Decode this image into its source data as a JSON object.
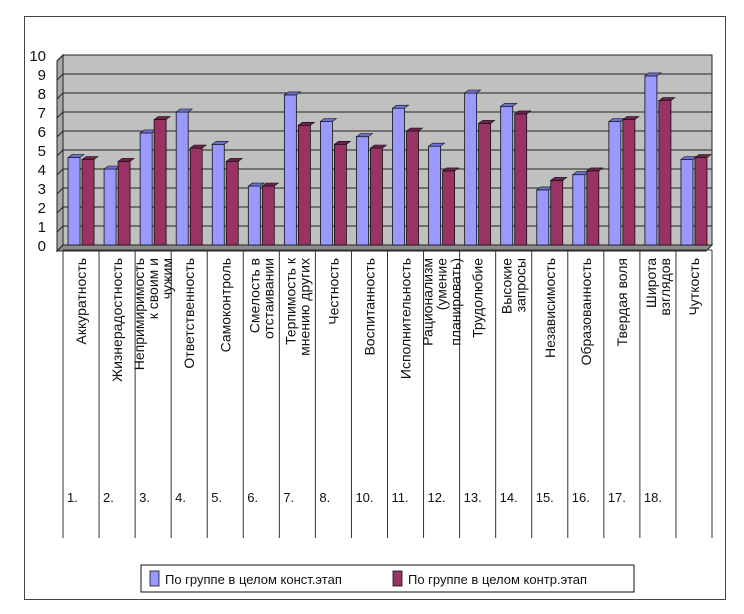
{
  "chart_data": {
    "type": "bar",
    "categories": [
      "Аккуратность",
      "Жизнерадостность",
      "Непримиримость к своим и чужим",
      "Ответственность",
      "Самоконтроль",
      "Смелость в отстаивании",
      "Терпимость к мнению других",
      "Честность",
      "Воспитанность",
      "Исполнительность",
      "Рационализм (умение планировать)",
      "Трудолюбие",
      "Высокие запросы",
      "Независимость",
      "Образованность",
      "Твердая воля",
      "Широта взглядов",
      "Чуткость"
    ],
    "row_numbers": [
      "1.",
      "2.",
      "3.",
      "4.",
      "5.",
      "6.",
      "7.",
      "8.",
      "10.",
      "11.",
      "12.",
      "13.",
      "14.",
      "15.",
      "16.",
      "17.",
      "18.",
      ""
    ],
    "series": [
      {
        "name": "По группе в целом конст.этап",
        "color": "#9999ff",
        "values": [
          4.6,
          4.0,
          5.9,
          7.0,
          5.3,
          3.1,
          7.9,
          6.5,
          5.7,
          7.2,
          5.2,
          8.0,
          7.3,
          2.9,
          3.7,
          6.5,
          8.9,
          4.5
        ]
      },
      {
        "name": "По группе в целом контр.этап",
        "color": "#993366",
        "values": [
          4.5,
          4.4,
          6.6,
          5.1,
          4.4,
          3.1,
          6.3,
          5.3,
          5.1,
          6.0,
          3.9,
          6.4,
          6.9,
          3.4,
          3.9,
          6.6,
          7.6,
          4.6
        ]
      }
    ],
    "y_ticks": [
      "0",
      "1",
      "2",
      "3",
      "4",
      "5",
      "6",
      "7",
      "8",
      "9",
      "10"
    ],
    "ylim": [
      0,
      10
    ],
    "grid": true,
    "legend_position": "bottom",
    "plot_background": "#c0c0c0"
  }
}
